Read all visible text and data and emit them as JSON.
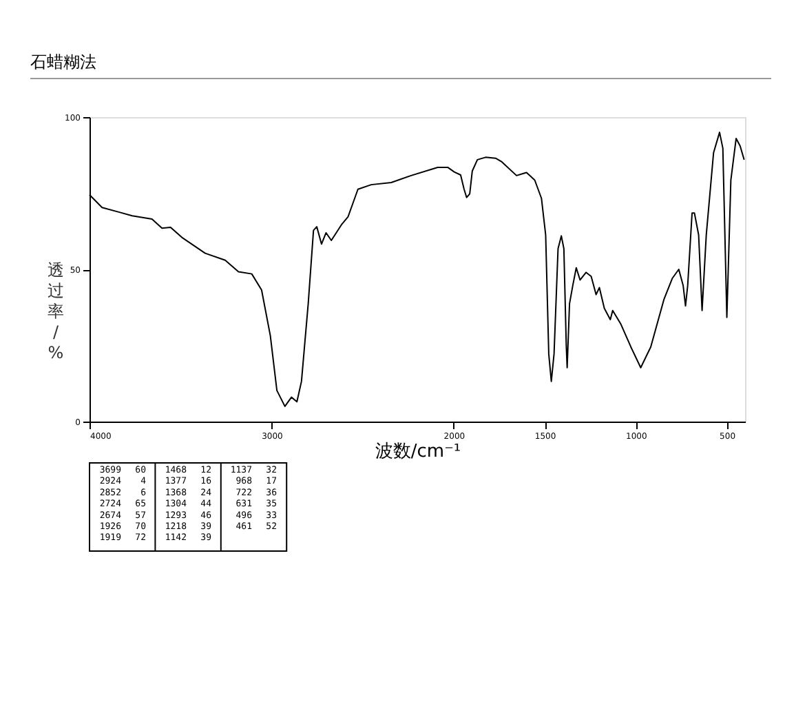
{
  "chart_data": {
    "type": "line",
    "title": "石蜡糊法",
    "xlabel": "波数/cm⁻¹",
    "ylabel": "透过率/%",
    "xlim": [
      4000,
      400
    ],
    "xticks": [
      4000,
      3000,
      2000,
      1500,
      1000,
      500
    ],
    "ylim": [
      0,
      100
    ],
    "yticks": [
      0,
      50,
      100
    ],
    "grid": false,
    "marker": "none",
    "line_style": "solid",
    "annotations": [
      "3699 60",
      "2924 4",
      "2852 6",
      "2724 65",
      "2674 57",
      "1926 70",
      "1919 72",
      "1468 12",
      "1377 16",
      "1368 24",
      "1304 44",
      "1293 46",
      "1218 39",
      "1142 39",
      "1137 32",
      "968 17",
      "722 36",
      "631 35",
      "496 33",
      "461 52"
    ],
    "series": [
      {
        "color": "#000000",
        "x": [
          4000,
          3931,
          3839,
          3766,
          3657,
          3602,
          3555,
          3493,
          3365,
          3255,
          3182,
          3109,
          3055,
          3007,
          2971,
          2927,
          2891,
          2861,
          2836,
          2799,
          2770,
          2752,
          2726,
          2701,
          2672,
          2617,
          2580,
          2526,
          2453,
          2343,
          2234,
          2088,
          2033,
          1997,
          1962,
          1943,
          1929,
          1912,
          1898,
          1870,
          1825,
          1770,
          1736,
          1655,
          1600,
          1555,
          1518,
          1495,
          1478,
          1464,
          1449,
          1427,
          1409,
          1395,
          1382,
          1377,
          1364,
          1346,
          1327,
          1306,
          1273,
          1245,
          1218,
          1200,
          1173,
          1140,
          1127,
          1082,
          1027,
          973,
          918,
          845,
          800,
          764,
          740,
          727,
          715,
          691,
          678,
          655,
          636,
          613,
          573,
          540,
          522,
          500,
          478,
          449,
          427,
          405
        ],
        "values": [
          74.5,
          70.3,
          68.8,
          67.6,
          66.5,
          63.5,
          63.8,
          60.5,
          55.3,
          53,
          49.2,
          48.5,
          43.2,
          28.2,
          10.2,
          5,
          8,
          6.5,
          13.2,
          38.7,
          62.8,
          64,
          58.3,
          62,
          59.5,
          64.6,
          67.3,
          76.3,
          77.8,
          78.5,
          80.8,
          83.5,
          83.5,
          82,
          81,
          76.3,
          73.6,
          74.8,
          82.3,
          86,
          86.8,
          86.5,
          85.3,
          80.8,
          81.8,
          79.3,
          73.3,
          61.3,
          22.2,
          13.2,
          22.2,
          56.8,
          61,
          56.8,
          25.2,
          17.7,
          38.7,
          44.7,
          50.5,
          46.5,
          49,
          47.7,
          41.7,
          44,
          37.2,
          33.5,
          36.5,
          32,
          24.5,
          17.7,
          24.5,
          40.2,
          47,
          50,
          44.7,
          38,
          44.7,
          68.5,
          68.5,
          61.3,
          36.5,
          61.3,
          88.3,
          95,
          89.8,
          34.2,
          79.3,
          93,
          90.5,
          86
        ]
      }
    ]
  }
}
